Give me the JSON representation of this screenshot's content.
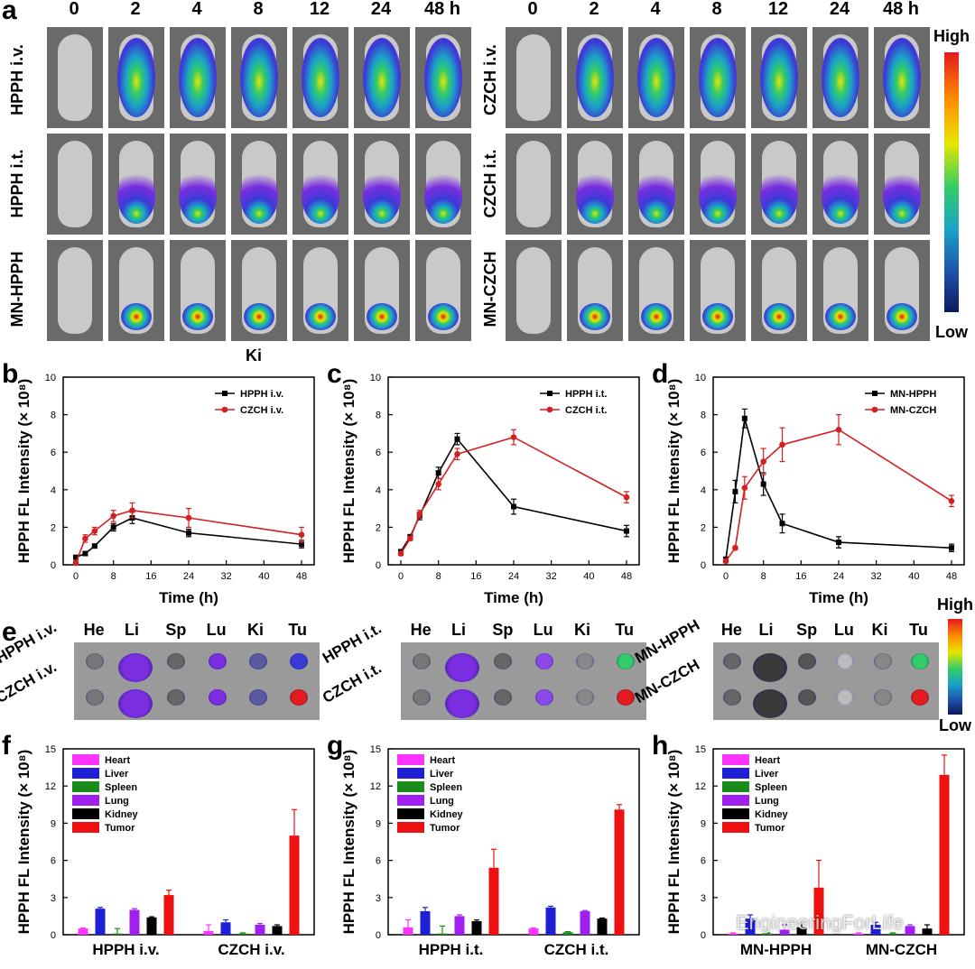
{
  "panel_a": {
    "letter": "a",
    "time_points": [
      "0",
      "2",
      "4",
      "8",
      "12",
      "24",
      "48 h"
    ],
    "left_rows": [
      "HPPH i.v.",
      "HPPH i.t.",
      "MN-HPPH"
    ],
    "right_rows": [
      "CZCH i.v.",
      "CZCH i.t.",
      "MN-CZCH"
    ],
    "colorbar_high": "High",
    "colorbar_low": "Low",
    "ki_label": "Ki"
  },
  "panel_e": {
    "letter": "e",
    "organs": [
      "He",
      "Li",
      "Sp",
      "Lu",
      "Ki",
      "Tu"
    ],
    "groups": [
      {
        "rows": [
          "HPPH i.v.",
          "CZCH i.v."
        ]
      },
      {
        "rows": [
          "HPPH i.t.",
          "CZCH i.t."
        ]
      },
      {
        "rows": [
          "MN-HPPH",
          "MN-CZCH"
        ]
      }
    ],
    "colorbar_high": "High",
    "colorbar_low": "Low"
  },
  "watermark": "EngineeringForLife",
  "chart_data": [
    {
      "id": "b",
      "type": "line",
      "letter": "b",
      "xlabel": "Time (h)",
      "ylabel": "HPPH FL Intensity (× 10⁸)",
      "xlim": [
        0,
        48
      ],
      "ylim": [
        0,
        10
      ],
      "xticks": [
        0,
        8,
        16,
        24,
        32,
        40,
        48
      ],
      "yticks": [
        0,
        2,
        4,
        6,
        8,
        10
      ],
      "series": [
        {
          "name": "HPPH i.v.",
          "color": "#000000",
          "x": [
            0,
            2,
            4,
            8,
            12,
            24,
            48
          ],
          "y": [
            0.4,
            0.6,
            1.0,
            2.0,
            2.5,
            1.7,
            1.1
          ],
          "err": [
            0.1,
            0.1,
            0.1,
            0.2,
            0.3,
            0.2,
            0.2
          ]
        },
        {
          "name": "CZCH i.v.",
          "color": "#d42020",
          "x": [
            0,
            2,
            4,
            8,
            12,
            24,
            48
          ],
          "y": [
            0.1,
            1.4,
            1.8,
            2.6,
            2.9,
            2.5,
            1.6
          ],
          "err": [
            0.1,
            0.2,
            0.2,
            0.3,
            0.4,
            0.5,
            0.4
          ]
        }
      ]
    },
    {
      "id": "c",
      "type": "line",
      "letter": "c",
      "xlabel": "Time (h)",
      "ylabel": "HPPH FL Intensity (× 10⁸)",
      "xlim": [
        0,
        48
      ],
      "ylim": [
        0,
        10
      ],
      "xticks": [
        0,
        8,
        16,
        24,
        32,
        40,
        48
      ],
      "yticks": [
        0,
        2,
        4,
        6,
        8,
        10
      ],
      "series": [
        {
          "name": "HPPH i.t.",
          "color": "#000000",
          "x": [
            0,
            2,
            4,
            8,
            12,
            24,
            48
          ],
          "y": [
            0.7,
            1.5,
            2.6,
            4.9,
            6.7,
            3.1,
            1.8
          ],
          "err": [
            0.1,
            0.1,
            0.2,
            0.3,
            0.3,
            0.4,
            0.3
          ]
        },
        {
          "name": "CZCH i.t.",
          "color": "#d42020",
          "x": [
            0,
            2,
            4,
            8,
            12,
            24,
            48
          ],
          "y": [
            0.6,
            1.4,
            2.7,
            4.3,
            5.9,
            6.8,
            3.6
          ],
          "err": [
            0.1,
            0.1,
            0.2,
            0.3,
            0.3,
            0.4,
            0.3
          ]
        }
      ]
    },
    {
      "id": "d",
      "type": "line",
      "letter": "d",
      "xlabel": "Time (h)",
      "ylabel": "HPPH FL Intensity (× 10⁸)",
      "xlim": [
        0,
        48
      ],
      "ylim": [
        0,
        10
      ],
      "xticks": [
        0,
        8,
        16,
        24,
        32,
        40,
        48
      ],
      "yticks": [
        0,
        2,
        4,
        6,
        8,
        10
      ],
      "series": [
        {
          "name": "MN-HPPH",
          "color": "#000000",
          "x": [
            0,
            2,
            4,
            8,
            12,
            24,
            48
          ],
          "y": [
            0.3,
            3.9,
            7.8,
            4.3,
            2.2,
            1.2,
            0.9
          ],
          "err": [
            0.1,
            0.6,
            0.5,
            0.6,
            0.5,
            0.3,
            0.2
          ]
        },
        {
          "name": "MN-CZCH",
          "color": "#d42020",
          "x": [
            0,
            2,
            4,
            8,
            12,
            24,
            48
          ],
          "y": [
            0.2,
            0.9,
            4.1,
            5.5,
            6.4,
            7.2,
            3.4
          ],
          "err": [
            0.1,
            0.1,
            0.6,
            0.7,
            0.9,
            0.8,
            0.3
          ]
        }
      ]
    },
    {
      "id": "f",
      "type": "bar",
      "letter": "f",
      "ylabel": "HPPH FL Intensity (× 10⁸)",
      "ylim": [
        0,
        15
      ],
      "yticks": [
        0,
        3,
        6,
        9,
        12,
        15
      ],
      "categories": [
        "HPPH i.v.",
        "CZCH i.v."
      ],
      "series": [
        {
          "name": "Heart",
          "color": "#ff33ff",
          "values": [
            0.5,
            0.3
          ],
          "err": [
            0.05,
            0.5
          ]
        },
        {
          "name": "Liver",
          "color": "#1f1fd6",
          "values": [
            2.1,
            1.0
          ],
          "err": [
            0.1,
            0.2
          ]
        },
        {
          "name": "Spleen",
          "color": "#1a8a1a",
          "values": [
            0.1,
            0.1
          ],
          "err": [
            0.4,
            0.05
          ]
        },
        {
          "name": "Lung",
          "color": "#a020f0",
          "values": [
            2.0,
            0.8
          ],
          "err": [
            0.1,
            0.1
          ]
        },
        {
          "name": "Kidney",
          "color": "#000000",
          "values": [
            1.4,
            0.7
          ],
          "err": [
            0.05,
            0.1
          ]
        },
        {
          "name": "Tumor",
          "color": "#ee1111",
          "values": [
            3.2,
            8.0
          ],
          "err": [
            0.4,
            2.1
          ]
        }
      ]
    },
    {
      "id": "g",
      "type": "bar",
      "letter": "g",
      "ylabel": "HPPH FL Intensity (× 10⁸)",
      "ylim": [
        0,
        15
      ],
      "yticks": [
        0,
        3,
        6,
        9,
        12,
        15
      ],
      "categories": [
        "HPPH i.t.",
        "CZCH i.t."
      ],
      "series": [
        {
          "name": "Heart",
          "color": "#ff33ff",
          "values": [
            0.6,
            0.5
          ],
          "err": [
            0.6,
            0.05
          ]
        },
        {
          "name": "Liver",
          "color": "#1f1fd6",
          "values": [
            1.9,
            2.2
          ],
          "err": [
            0.3,
            0.1
          ]
        },
        {
          "name": "Spleen",
          "color": "#1a8a1a",
          "values": [
            0.1,
            0.2
          ],
          "err": [
            0.6,
            0.05
          ]
        },
        {
          "name": "Lung",
          "color": "#a020f0",
          "values": [
            1.5,
            1.9
          ],
          "err": [
            0.1,
            0.05
          ]
        },
        {
          "name": "Kidney",
          "color": "#000000",
          "values": [
            1.1,
            1.3
          ],
          "err": [
            0.1,
            0.05
          ]
        },
        {
          "name": "Tumor",
          "color": "#ee1111",
          "values": [
            5.4,
            10.1
          ],
          "err": [
            1.5,
            0.4
          ]
        }
      ]
    },
    {
      "id": "h",
      "type": "bar",
      "letter": "h",
      "ylabel": "HPPH FL Intensity (× 10⁸)",
      "ylim": [
        0,
        15
      ],
      "yticks": [
        0,
        3,
        6,
        9,
        12,
        15
      ],
      "categories": [
        "MN-HPPH",
        "MN-CZCH"
      ],
      "series": [
        {
          "name": "Heart",
          "color": "#ff33ff",
          "values": [
            0.1,
            0.1
          ],
          "err": [
            0.05,
            0.05
          ]
        },
        {
          "name": "Liver",
          "color": "#1f1fd6",
          "values": [
            1.3,
            0.8
          ],
          "err": [
            0.3,
            0.2
          ]
        },
        {
          "name": "Spleen",
          "color": "#1a8a1a",
          "values": [
            0.1,
            0.1
          ],
          "err": [
            0.05,
            0.05
          ]
        },
        {
          "name": "Lung",
          "color": "#a020f0",
          "values": [
            0.4,
            0.7
          ],
          "err": [
            0.4,
            0.1
          ]
        },
        {
          "name": "Kidney",
          "color": "#000000",
          "values": [
            0.6,
            0.5
          ],
          "err": [
            0.3,
            0.3
          ]
        },
        {
          "name": "Tumor",
          "color": "#ee1111",
          "values": [
            3.8,
            12.9
          ],
          "err": [
            2.2,
            1.6
          ]
        }
      ]
    }
  ]
}
